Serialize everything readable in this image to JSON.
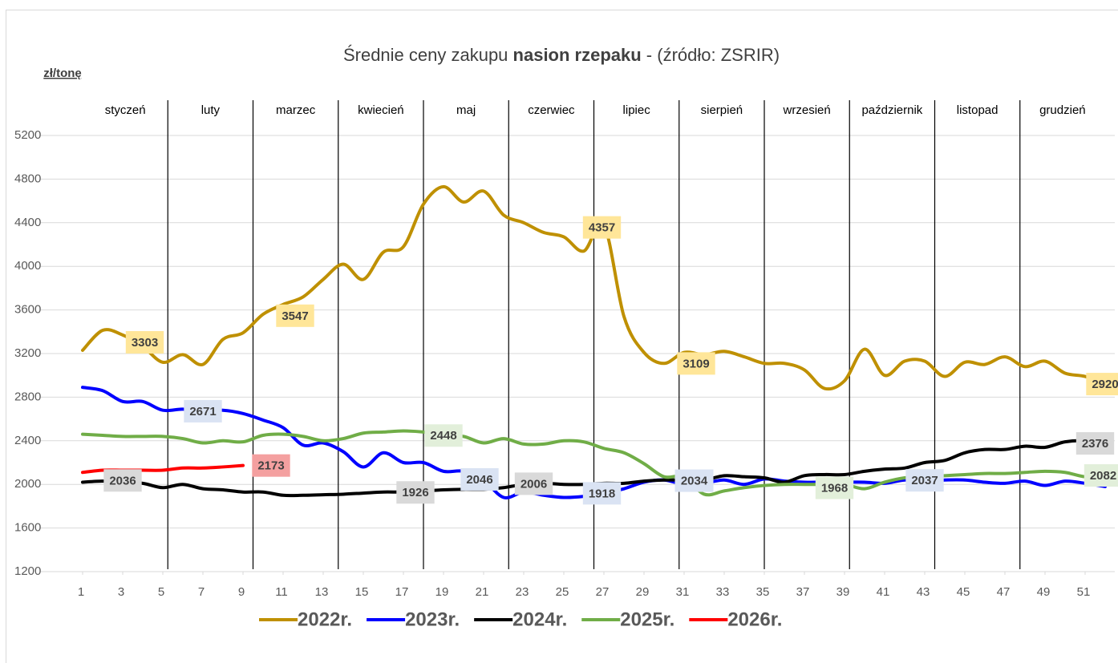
{
  "chart_data": {
    "type": "line",
    "title": [
      "Średnie ceny zakupu ",
      "nasion rzepaku",
      " - (źródło: ZSRIR)"
    ],
    "y_label": "zł/tonę",
    "months": [
      "styczeń",
      "luty",
      "marzec",
      "kwiecień",
      "maj",
      "czerwiec",
      "lipiec",
      "sierpień",
      "wrzesień",
      "październik",
      "listopad",
      "grudzień"
    ],
    "x": [
      1,
      2,
      3,
      4,
      5,
      6,
      7,
      8,
      9,
      10,
      11,
      12,
      13,
      14,
      15,
      16,
      17,
      18,
      19,
      20,
      21,
      22,
      23,
      24,
      25,
      26,
      27,
      28,
      29,
      30,
      31,
      32,
      33,
      34,
      35,
      36,
      37,
      38,
      39,
      40,
      41,
      42,
      43,
      44,
      45,
      46,
      47,
      48,
      49,
      50,
      51,
      52
    ],
    "xlim": [
      1,
      52
    ],
    "xticks": [
      1,
      3,
      5,
      7,
      9,
      11,
      13,
      15,
      17,
      19,
      21,
      23,
      25,
      27,
      29,
      31,
      33,
      35,
      37,
      39,
      41,
      43,
      45,
      47,
      49,
      51
    ],
    "ylim": [
      1200,
      5200
    ],
    "yticks": [
      1200,
      1600,
      2000,
      2400,
      2800,
      3200,
      3600,
      4000,
      4400,
      4800,
      5200
    ],
    "grid": true,
    "legend": "bottom",
    "series": [
      {
        "name": "2022r.",
        "color": "#bf9000",
        "label_color": "#ffe699",
        "values": [
          3230,
          3413,
          3370,
          3266,
          3120,
          3190,
          3100,
          3330,
          3390,
          3560,
          3650,
          3720,
          3880,
          4020,
          3880,
          4130,
          4180,
          4570,
          4730,
          4590,
          4690,
          4470,
          4400,
          4310,
          4270,
          4140,
          4380,
          3540,
          3210,
          3110,
          3210,
          3190,
          3220,
          3170,
          3110,
          3110,
          3050,
          2880,
          2950,
          3240,
          3000,
          3130,
          3130,
          2990,
          3120,
          3100,
          3170,
          3080,
          3130,
          3020,
          2990,
          2920
        ],
        "labels": [
          {
            "x": 4.1,
            "value": 3303
          },
          {
            "x": 11.6,
            "value": 3547
          },
          {
            "x": 26.9,
            "value": 4357
          },
          {
            "x": 31.6,
            "value": 3109
          },
          {
            "x": 52,
            "value": 2920
          }
        ]
      },
      {
        "name": "2023r.",
        "color": "#0000ff",
        "label_color": "#dae3f3",
        "values": [
          2890,
          2860,
          2760,
          2760,
          2680,
          2690,
          2670,
          2680,
          2650,
          2590,
          2520,
          2360,
          2380,
          2300,
          2160,
          2290,
          2200,
          2200,
          2120,
          2120,
          2040,
          1880,
          1930,
          1900,
          1880,
          1890,
          1920,
          1960,
          2020,
          2040,
          2000,
          2010,
          2040,
          2000,
          2050,
          2030,
          2020,
          2020,
          2020,
          2020,
          2010,
          2040,
          2030,
          2040,
          2040,
          2020,
          2010,
          2030,
          1990,
          2030,
          2010,
          1980
        ],
        "labels": [
          {
            "x": 7,
            "value": 2671
          },
          {
            "x": 20.8,
            "value": 2046
          },
          {
            "x": 26.9,
            "value": 1918
          },
          {
            "x": 31.5,
            "value": 2034
          },
          {
            "x": 43,
            "value": 2037
          }
        ]
      },
      {
        "name": "2024r.",
        "color": "#000000",
        "label_color": "#d9d9d9",
        "values": [
          2020,
          2030,
          2020,
          2010,
          1970,
          2000,
          1960,
          1950,
          1930,
          1930,
          1900,
          1900,
          1905,
          1910,
          1920,
          1930,
          1930,
          1940,
          1950,
          1955,
          1955,
          1970,
          2000,
          2010,
          2000,
          2000,
          2010,
          2010,
          2030,
          2040,
          2040,
          2040,
          2080,
          2070,
          2060,
          2020,
          2080,
          2090,
          2090,
          2120,
          2140,
          2150,
          2200,
          2220,
          2290,
          2320,
          2320,
          2350,
          2340,
          2390,
          2400,
          2370
        ],
        "labels": [
          {
            "x": 3,
            "value": 2036
          },
          {
            "x": 17.6,
            "value": 1926
          },
          {
            "x": 23.5,
            "value": 2006
          },
          {
            "x": 51.5,
            "value": 2376
          }
        ]
      },
      {
        "name": "2025r.",
        "color": "#70ad47",
        "label_color": "#e2efda",
        "values": [
          2460,
          2450,
          2440,
          2440,
          2440,
          2420,
          2380,
          2400,
          2390,
          2450,
          2460,
          2440,
          2400,
          2420,
          2470,
          2480,
          2490,
          2480,
          2450,
          2440,
          2380,
          2420,
          2370,
          2370,
          2400,
          2390,
          2330,
          2290,
          2190,
          2070,
          2070,
          1910,
          1940,
          1970,
          1990,
          2000,
          2000,
          2000,
          2000,
          1960,
          2020,
          2060,
          2070,
          2080,
          2090,
          2100,
          2100,
          2110,
          2120,
          2110,
          2070,
          2080
        ],
        "labels": [
          {
            "x": 19,
            "value": 2448
          },
          {
            "x": 38.5,
            "value": 1968
          },
          {
            "x": 51.9,
            "value": 2082
          }
        ]
      },
      {
        "name": "2026r.",
        "color": "#ff0000",
        "label_color": "#f4a0a0",
        "values": [
          2110,
          2130,
          2130,
          2130,
          2130,
          2150,
          2150,
          2160,
          2173,
          null,
          null,
          null,
          null,
          null,
          null,
          null,
          null,
          null,
          null,
          null,
          null,
          null,
          null,
          null,
          null,
          null,
          null,
          null,
          null,
          null,
          null,
          null,
          null,
          null,
          null,
          null,
          null,
          null,
          null,
          null,
          null,
          null,
          null,
          null,
          null,
          null,
          null,
          null,
          null,
          null,
          null,
          null
        ],
        "labels": [
          {
            "x": 10.4,
            "value": 2173
          }
        ]
      }
    ]
  }
}
